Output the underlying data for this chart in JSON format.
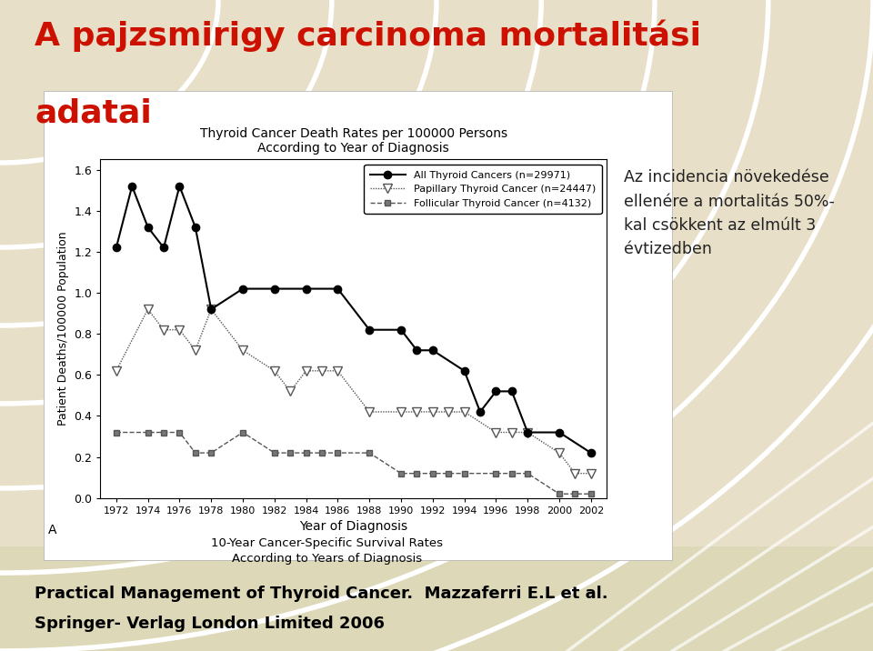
{
  "title_line1": "A pajzsmirigy carcinoma mortalitási",
  "title_line2": "adatai",
  "chart_title": "Thyroid Cancer Death Rates per 100000 Persons\nAccording to Year of Diagnosis",
  "xlabel": "Year of Diagnosis",
  "ylabel": "Patient Deaths/100000 Population",
  "subtitle_bottom": "10-Year Cancer-Specific Survival Rates\nAccording to Years of Diagnosis",
  "annotation_text": "Az incidencia növekedése\nellenére a mortalitás 50%-\nkal csökkent az elmúlt 3\névtizedben",
  "citation_line1": "Practical Management of Thyroid Cancer.  Mazzaferri E.L et al.",
  "citation_line2": "Springer- Verlag London Limited 2006",
  "side_label": "A",
  "all_thyroid_x": [
    1972,
    1973,
    1974,
    1975,
    1976,
    1977,
    1978,
    1980,
    1982,
    1984,
    1986,
    1988,
    1990,
    1991,
    1992,
    1994,
    1995,
    1996,
    1997,
    1998,
    2000,
    2002
  ],
  "all_thyroid_y": [
    1.22,
    1.52,
    1.32,
    1.22,
    1.52,
    1.32,
    0.92,
    1.02,
    1.02,
    1.02,
    1.02,
    0.82,
    0.82,
    0.72,
    0.72,
    0.62,
    0.42,
    0.52,
    0.52,
    0.32,
    0.32,
    0.22
  ],
  "papillary_x": [
    1972,
    1974,
    1975,
    1976,
    1977,
    1978,
    1980,
    1982,
    1983,
    1984,
    1985,
    1986,
    1988,
    1990,
    1991,
    1992,
    1993,
    1994,
    1996,
    1997,
    1998,
    2000,
    2001,
    2002
  ],
  "papillary_y": [
    0.62,
    0.92,
    0.82,
    0.82,
    0.72,
    0.92,
    0.72,
    0.62,
    0.52,
    0.62,
    0.62,
    0.62,
    0.42,
    0.42,
    0.42,
    0.42,
    0.42,
    0.42,
    0.32,
    0.32,
    0.32,
    0.22,
    0.12,
    0.12
  ],
  "follicular_x": [
    1972,
    1974,
    1975,
    1976,
    1977,
    1978,
    1980,
    1982,
    1983,
    1984,
    1985,
    1986,
    1988,
    1990,
    1991,
    1992,
    1993,
    1994,
    1996,
    1997,
    1998,
    2000,
    2001,
    2002
  ],
  "follicular_y": [
    0.32,
    0.32,
    0.32,
    0.32,
    0.22,
    0.22,
    0.32,
    0.22,
    0.22,
    0.22,
    0.22,
    0.22,
    0.22,
    0.12,
    0.12,
    0.12,
    0.12,
    0.12,
    0.12,
    0.12,
    0.12,
    0.02,
    0.02,
    0.02
  ],
  "legend_all": "All Thyroid Cancers (n=29971)",
  "legend_pap": "Papillary Thyroid Cancer (n=24447)",
  "legend_fol": "Follicular Thyroid Cancer (n=4132)",
  "xticks": [
    1972,
    1974,
    1976,
    1978,
    1980,
    1982,
    1984,
    1986,
    1988,
    1990,
    1992,
    1994,
    1996,
    1998,
    2000,
    2002
  ],
  "yticks": [
    0.0,
    0.2,
    0.4,
    0.6,
    0.8,
    1.0,
    1.2,
    1.4,
    1.6
  ],
  "xlim": [
    1971,
    2003
  ],
  "ylim": [
    0.0,
    1.65
  ],
  "bg_color_top": "#e8dfc8",
  "bg_color_bottom": "#e8e4d0",
  "chart_bg": "#ffffff",
  "title_color": "#cc1100",
  "text_color": "#000000",
  "annotation_color": "#222222"
}
